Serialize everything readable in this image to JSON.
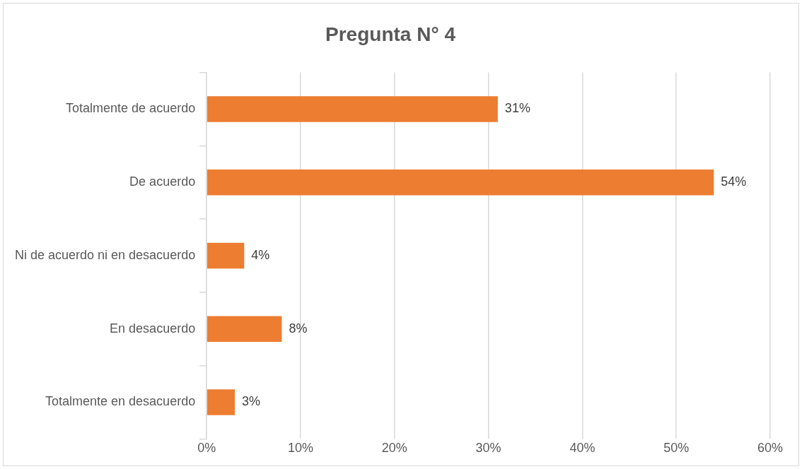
{
  "chart_data": {
    "type": "bar",
    "orientation": "horizontal",
    "title": "Pregunta N° 4",
    "categories": [
      "Totalmente de acuerdo",
      "De acuerdo",
      "Ni de acuerdo ni en desacuerdo",
      "En desacuerdo",
      "Totalmente en desacuerdo"
    ],
    "values": [
      31,
      54,
      4,
      8,
      3
    ],
    "value_labels": [
      "31%",
      "54%",
      "4%",
      "8%",
      "3%"
    ],
    "color": "#ed7d31",
    "xlim": [
      0,
      60
    ],
    "xticks": [
      {
        "value": 0,
        "label": "0%"
      },
      {
        "value": 10,
        "label": "10%"
      },
      {
        "value": 20,
        "label": "20%"
      },
      {
        "value": 30,
        "label": "30%"
      },
      {
        "value": 40,
        "label": "40%"
      },
      {
        "value": 50,
        "label": "50%"
      },
      {
        "value": 60,
        "label": "60%"
      }
    ],
    "grid": "x",
    "legend": false
  }
}
